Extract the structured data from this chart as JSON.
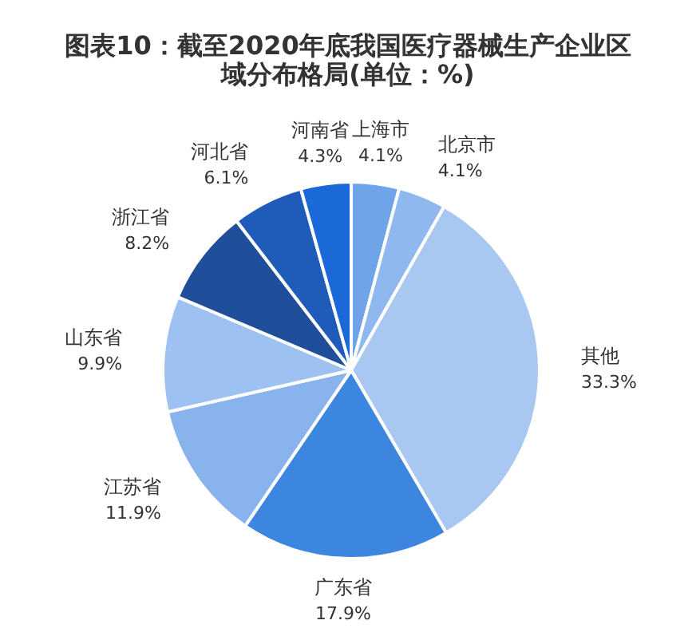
{
  "chart_data": {
    "type": "pie",
    "title": "图表10：截至2020年底我国医疗器械生产企业区域分布格局(单位：%)",
    "categories": [
      "上海市",
      "北京市",
      "其他",
      "广东省",
      "江苏省",
      "山东省",
      "浙江省",
      "河北省",
      "河南省"
    ],
    "values": [
      4.1,
      4.1,
      33.3,
      17.9,
      11.9,
      9.9,
      8.2,
      6.1,
      4.3
    ],
    "value_labels": [
      "4.1%",
      "4.1%",
      "33.3%",
      "17.9%",
      "11.9%",
      "9.9%",
      "8.2%",
      "6.1%",
      "4.3%"
    ],
    "colors": [
      "#6fa4e8",
      "#8fb9ee",
      "#a8c8f1",
      "#3d86e0",
      "#88b3ec",
      "#9dc2f1",
      "#1f4f9a",
      "#1f5cba",
      "#1b68d8"
    ]
  }
}
